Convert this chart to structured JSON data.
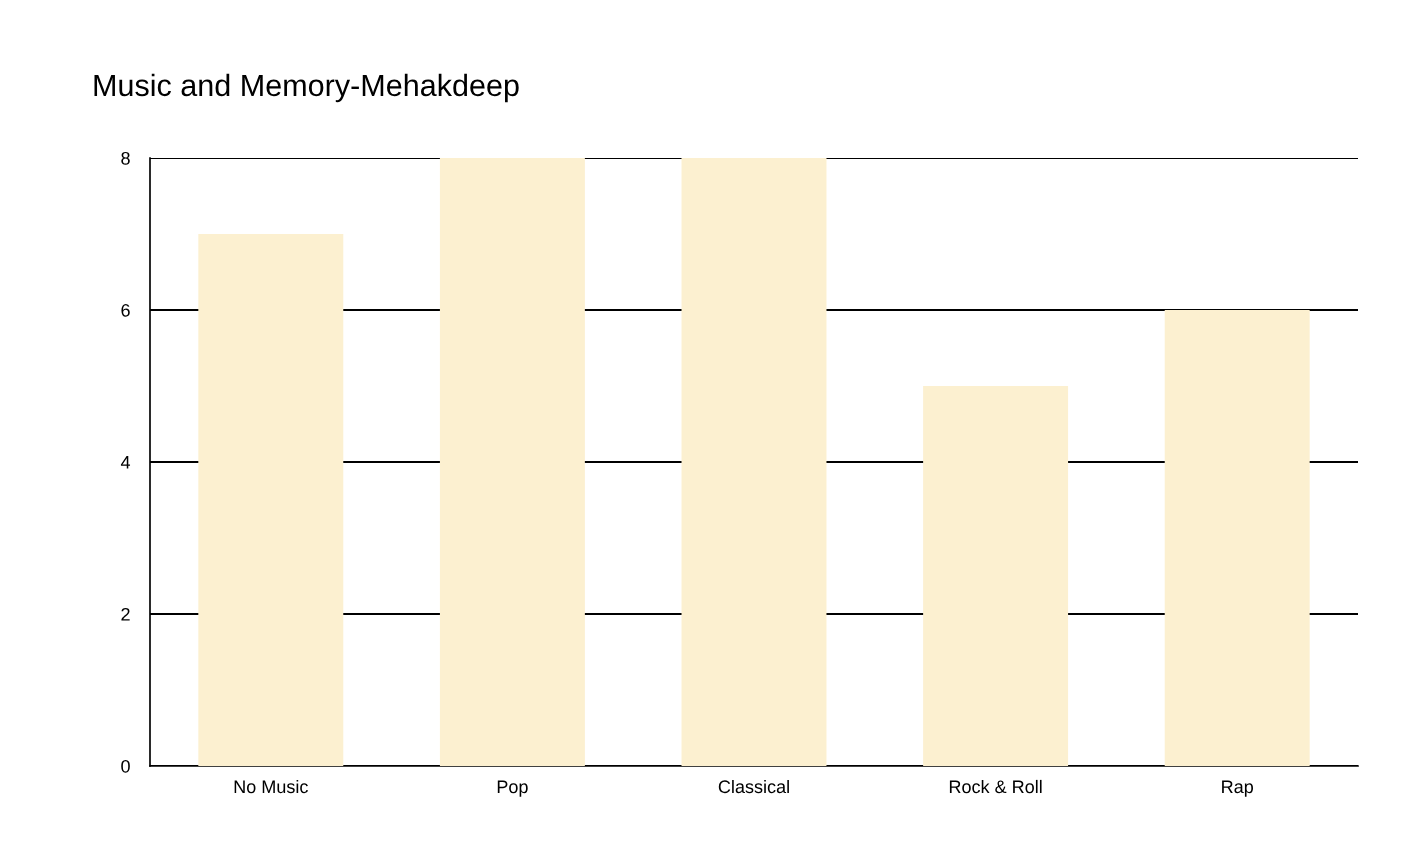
{
  "chart_data": {
    "type": "bar",
    "title": "Music and Memory-Mehakdeep",
    "categories": [
      "No Music",
      "Pop",
      "Classical",
      "Rock & Roll",
      "Rap"
    ],
    "values": [
      7,
      8,
      8,
      5,
      6
    ],
    "color": "#fcf0d0",
    "ylim": [
      0,
      8
    ],
    "yticks": [
      0,
      2,
      4,
      6,
      8
    ],
    "grid": "y",
    "legend": false
  }
}
